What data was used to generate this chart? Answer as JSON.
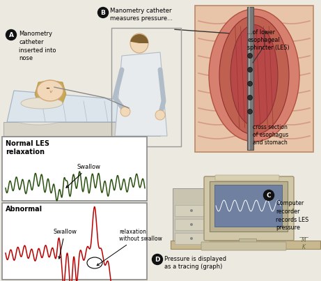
{
  "bg_color": "#ece9e0",
  "label_A": "A",
  "label_B": "B",
  "label_C": "C",
  "label_D": "D",
  "text_A": "Manometry\ncatheter\ninserted into\nnose",
  "text_B": "Manometry catheter\nmeasures pressure...",
  "text_LES": "...of lower\nesophageal\nsphincter (LES)",
  "text_cross": "cross section\nof esophagus\nand stomach",
  "text_C": "Computer\nrecorder\nrecords LES\npressure",
  "text_D": "Pressure is displayed\nas a tracing (graph)",
  "normal_title": "Normal LES\nrelaxation",
  "normal_swallow": "Swallow",
  "normal_color": "#2a5010",
  "abnormal_title": "Abnormal",
  "abnormal_swallow": "Swallow",
  "abnormal_relax": "relaxation\nwithout swallow",
  "abnormal_color": "#bb0000",
  "box_border": "#777777",
  "mk_text": "M\nK"
}
